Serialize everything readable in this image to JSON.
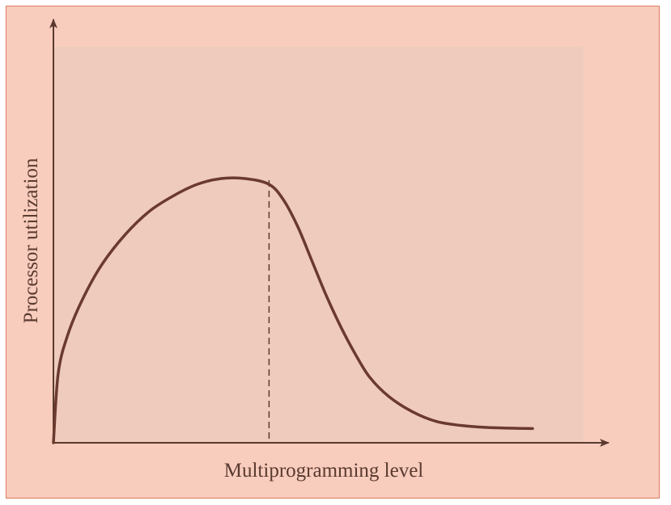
{
  "chart_data": {
    "type": "line",
    "title": "",
    "xlabel": "Multiprogramming level",
    "ylabel": "Processor utilization",
    "xlim": [
      0,
      100
    ],
    "ylim": [
      0,
      100
    ],
    "grid": false,
    "x_ticks": [],
    "y_ticks": [],
    "series": [
      {
        "x": [
          0,
          1,
          3,
          6,
          10,
          15,
          20,
          25,
          30,
          35,
          40,
          45,
          48,
          51,
          54,
          57,
          60,
          63,
          66,
          70,
          75,
          80,
          85,
          90,
          95,
          100
        ],
        "values": [
          0,
          18,
          28,
          37,
          46,
          54,
          60,
          64,
          67,
          68.5,
          68.5,
          67,
          63,
          56,
          47,
          38,
          30,
          23,
          17,
          12,
          8,
          5.5,
          4.5,
          4,
          3.8,
          3.7
        ]
      }
    ],
    "annotations": [
      {
        "type": "vertical-dashed-line",
        "x": 45
      }
    ],
    "colors": {
      "background": "#f8cdbd",
      "plot_area": "#efcbbe",
      "border": "#e07a5f",
      "axis": "#5a3a30",
      "curve": "#6b3a2e"
    }
  }
}
